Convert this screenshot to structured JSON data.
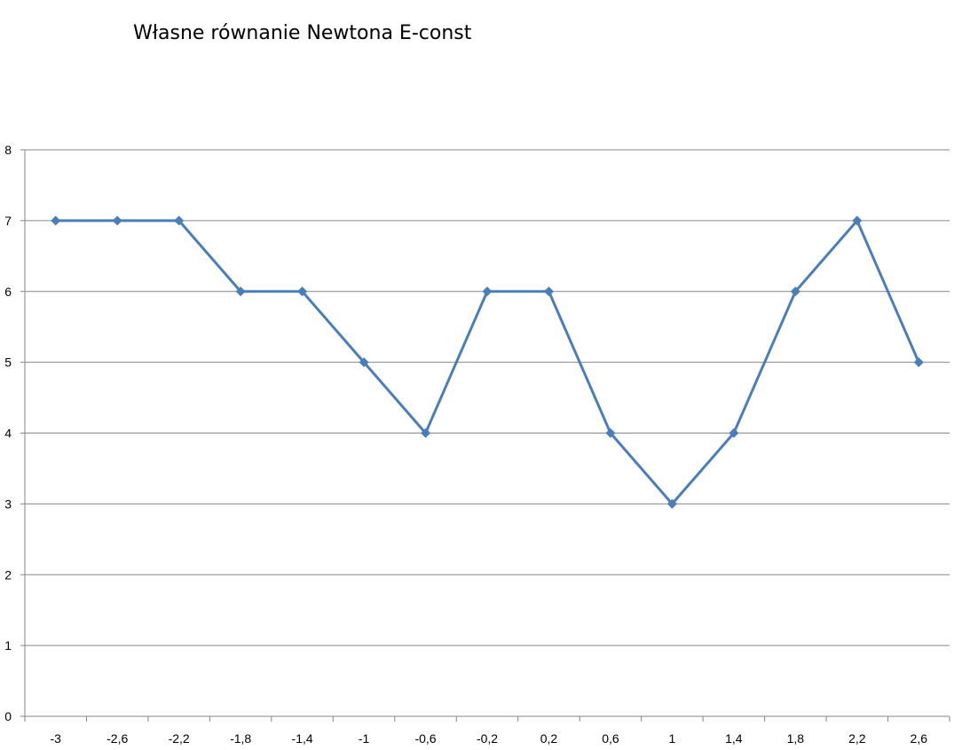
{
  "chart_data": {
    "type": "line",
    "title": "Własne równanie Newtona E-const",
    "xlabel": "",
    "ylabel": "",
    "categories": [
      "-3",
      "-2,6",
      "-2,2",
      "-1,8",
      "-1,4",
      "-1",
      "-0,6",
      "-0,2",
      "0,2",
      "0,6",
      "1",
      "1,4",
      "1,8",
      "2,2",
      "2,6"
    ],
    "y_ticks": [
      "0",
      "1",
      "2",
      "3",
      "4",
      "5",
      "6",
      "7",
      "8"
    ],
    "ylim": [
      0,
      8
    ],
    "series": [
      {
        "values": [
          7,
          7,
          7,
          6,
          6,
          5,
          4,
          6,
          6,
          4,
          3,
          4,
          6,
          7,
          5
        ],
        "color": "#4a7ebb",
        "marker": "diamond"
      }
    ],
    "grid": true,
    "legend": "none"
  }
}
